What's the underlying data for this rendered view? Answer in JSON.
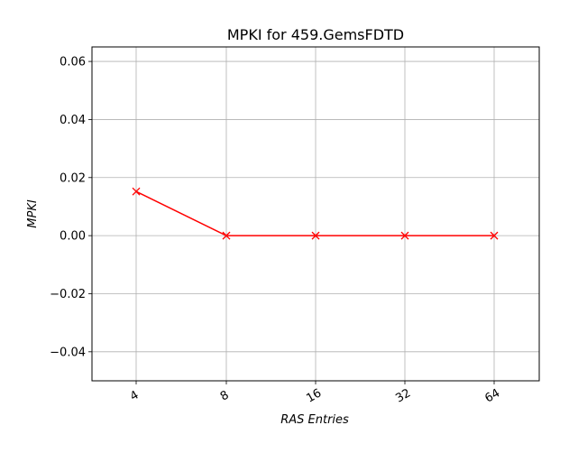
{
  "chart_data": {
    "type": "line",
    "title": "MPKI for 459.GemsFDTD",
    "xlabel": "RAS Entries",
    "ylabel": "MPKI",
    "categories": [
      "4",
      "8",
      "16",
      "32",
      "64"
    ],
    "series": [
      {
        "values": [
          0.0152,
          0.0,
          0.0,
          0.0,
          0.0
        ],
        "color": "#ff0000",
        "marker": "x"
      }
    ],
    "ylim": [
      -0.05,
      0.065
    ],
    "yticks": [
      "0.06",
      "0.04",
      "0.02",
      "0.00",
      "−0.02",
      "−0.04"
    ],
    "ytick_values": [
      0.06,
      0.04,
      0.02,
      0.0,
      -0.02,
      -0.04
    ],
    "grid": true,
    "xtick_rotation": "rotated"
  }
}
